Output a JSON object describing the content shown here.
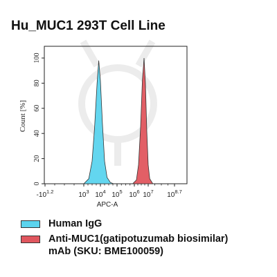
{
  "chart_data": {
    "type": "area",
    "title": "Hu_MUC1 293T Cell Line",
    "xlabel": "APC-A",
    "ylabel": "Count [%]",
    "x_scale": "log",
    "ylim": [
      0,
      100
    ],
    "y_ticks": [
      "0",
      "20",
      "40",
      "60",
      "80",
      "100"
    ],
    "x_ticks": [
      {
        "base": "-10",
        "exp": "1.2"
      },
      {
        "base": "10",
        "exp": "3"
      },
      {
        "base": "10",
        "exp": "4"
      },
      {
        "base": "10",
        "exp": "5"
      },
      {
        "base": "10",
        "exp": "6"
      },
      {
        "base": "10",
        "exp": "7"
      },
      {
        "base": "10",
        "exp": "8.7"
      }
    ],
    "grid": false,
    "legend_position": "bottom-left",
    "series": [
      {
        "name": "Human IgG",
        "color": "#5bd4ee",
        "peak_log10_apc": 3.9,
        "points": [
          [
            3.0,
            0
          ],
          [
            3.3,
            4
          ],
          [
            3.5,
            18
          ],
          [
            3.65,
            45
          ],
          [
            3.8,
            80
          ],
          [
            3.9,
            98
          ],
          [
            4.0,
            82
          ],
          [
            4.12,
            48
          ],
          [
            4.25,
            18
          ],
          [
            4.4,
            5
          ],
          [
            4.6,
            1
          ],
          [
            4.8,
            0
          ]
        ]
      },
      {
        "name": "Anti-MUC1(gatipotuzumab biosimilar) mAb (SKU: BME100059)",
        "color": "#e0565e",
        "peak_log10_apc": 6.7,
        "points": [
          [
            5.9,
            0
          ],
          [
            6.15,
            3
          ],
          [
            6.3,
            15
          ],
          [
            6.45,
            45
          ],
          [
            6.58,
            82
          ],
          [
            6.7,
            100
          ],
          [
            6.8,
            80
          ],
          [
            6.9,
            42
          ],
          [
            7.0,
            15
          ],
          [
            7.1,
            4
          ],
          [
            7.3,
            0
          ]
        ]
      }
    ]
  },
  "legend": {
    "items": [
      {
        "label_lines": [
          "Human IgG"
        ],
        "color": "#5bd4ee"
      },
      {
        "label_lines": [
          "Anti-MUC1(gatipotuzumab biosimilar)",
          "mAb (SKU: BME100059)"
        ],
        "color": "#e0565e"
      }
    ]
  }
}
